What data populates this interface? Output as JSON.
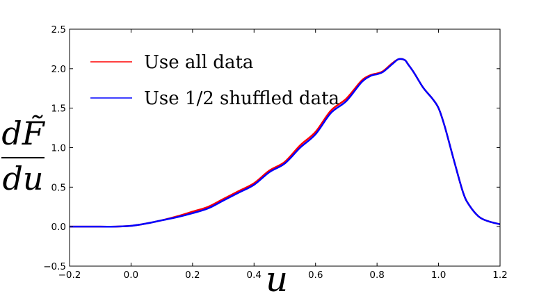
{
  "chart_data": {
    "type": "line",
    "title": "",
    "xlabel": "u",
    "ylabel": {
      "numerator": "dF̃",
      "denominator": "du"
    },
    "xlim": [
      -0.2,
      1.2
    ],
    "ylim": [
      -0.5,
      2.5
    ],
    "xticks": [
      -0.2,
      0.0,
      0.2,
      0.4,
      0.6,
      0.8,
      1.0,
      1.2
    ],
    "yticks": [
      -0.5,
      0.0,
      0.5,
      1.0,
      1.5,
      2.0,
      2.5
    ],
    "xtick_labels": [
      "−0.2",
      "0.0",
      "0.2",
      "0.4",
      "0.6",
      "0.8",
      "1.0",
      "1.2"
    ],
    "ytick_labels": [
      "−0.5",
      "0.0",
      "0.5",
      "1.0",
      "1.5",
      "2.0",
      "2.5"
    ],
    "grid": false,
    "legend_position": "top-left",
    "series": [
      {
        "name": "Use all data",
        "color": "#ff0000",
        "x": [
          -0.2,
          -0.1,
          -0.05,
          0.0,
          0.05,
          0.1,
          0.15,
          0.2,
          0.25,
          0.3,
          0.35,
          0.4,
          0.45,
          0.5,
          0.55,
          0.6,
          0.65,
          0.7,
          0.75,
          0.78,
          0.8,
          0.82,
          0.85,
          0.87,
          0.89,
          0.9,
          0.92,
          0.95,
          0.98,
          1.0,
          1.02,
          1.05,
          1.08,
          1.1,
          1.13,
          1.16,
          1.2
        ],
        "y": [
          0.0,
          0.0,
          0.0,
          0.01,
          0.04,
          0.08,
          0.13,
          0.19,
          0.25,
          0.35,
          0.45,
          0.55,
          0.71,
          0.82,
          1.03,
          1.2,
          1.47,
          1.62,
          1.85,
          1.92,
          1.94,
          1.97,
          2.07,
          2.12,
          2.11,
          2.06,
          1.95,
          1.76,
          1.62,
          1.5,
          1.27,
          0.84,
          0.43,
          0.27,
          0.13,
          0.07,
          0.03
        ]
      },
      {
        "name": "Use 1/2 shuffled data",
        "color": "#0000ff",
        "x": [
          -0.2,
          -0.1,
          -0.05,
          0.0,
          0.05,
          0.1,
          0.15,
          0.2,
          0.25,
          0.3,
          0.35,
          0.4,
          0.45,
          0.5,
          0.55,
          0.6,
          0.65,
          0.7,
          0.75,
          0.78,
          0.8,
          0.82,
          0.85,
          0.87,
          0.89,
          0.9,
          0.92,
          0.95,
          0.98,
          1.0,
          1.02,
          1.05,
          1.08,
          1.1,
          1.13,
          1.16,
          1.2
        ],
        "y": [
          0.0,
          0.0,
          0.0,
          0.01,
          0.04,
          0.08,
          0.12,
          0.17,
          0.23,
          0.33,
          0.43,
          0.53,
          0.69,
          0.8,
          1.0,
          1.17,
          1.44,
          1.59,
          1.83,
          1.91,
          1.93,
          1.96,
          2.06,
          2.12,
          2.11,
          2.06,
          1.95,
          1.76,
          1.62,
          1.5,
          1.27,
          0.84,
          0.43,
          0.27,
          0.13,
          0.07,
          0.03
        ]
      }
    ]
  }
}
